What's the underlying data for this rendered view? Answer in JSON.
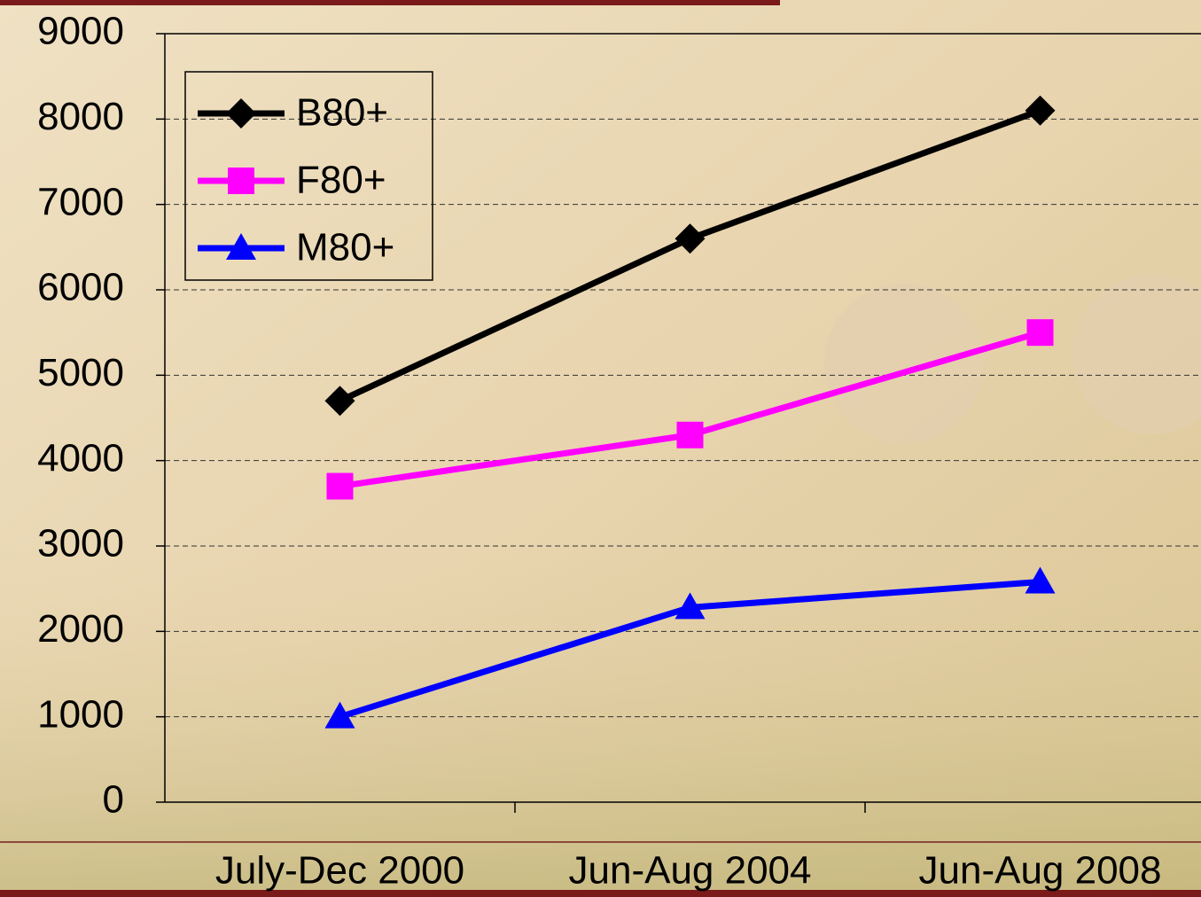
{
  "chart_data": {
    "type": "line",
    "categories": [
      "July-Dec 2000",
      "Jun-Aug 2004",
      "Jun-Aug 2008"
    ],
    "series": [
      {
        "name": "B80+",
        "color": "#000000",
        "marker": "diamond",
        "values": [
          4700,
          6600,
          8100
        ]
      },
      {
        "name": "F80+",
        "color": "#ff00ff",
        "marker": "square",
        "values": [
          3700,
          4300,
          5500
        ]
      },
      {
        "name": "M80+",
        "color": "#0000ff",
        "marker": "triangle",
        "values": [
          1000,
          2280,
          2580
        ]
      }
    ],
    "ylim": [
      0,
      9000
    ],
    "yticks": [
      0,
      1000,
      2000,
      3000,
      4000,
      5000,
      6000,
      7000,
      8000,
      9000
    ],
    "grid": true,
    "legend": "top-left"
  }
}
